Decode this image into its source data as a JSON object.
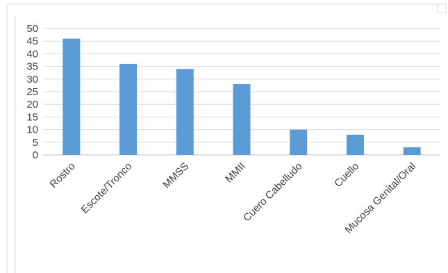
{
  "chart_data": {
    "type": "bar",
    "categories": [
      "Rostro",
      "Escote/Tronco",
      "MMSS",
      "MMII",
      "Cuero Cabelludo",
      "Cuello",
      "Mucosa Genital/Oral"
    ],
    "values": [
      46,
      36,
      34,
      28,
      10,
      8,
      3
    ],
    "ylim": [
      0,
      50
    ],
    "yticks": [
      0,
      5,
      10,
      15,
      20,
      25,
      30,
      35,
      40,
      45,
      50
    ],
    "grid": true,
    "legend": "none",
    "bar_color": "#5b9bd5"
  }
}
